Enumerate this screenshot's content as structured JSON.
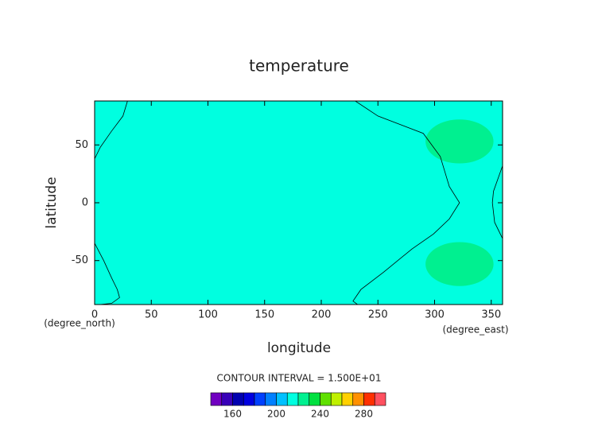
{
  "chart_data": {
    "type": "contour",
    "title": "temperature",
    "xlabel": "longitude",
    "ylabel": "latitude",
    "xunit": "(degree_east)",
    "yunit": "(degree_north)",
    "xlim": [
      0,
      360
    ],
    "ylim": [
      -88,
      88
    ],
    "xticks": [
      0,
      50,
      100,
      150,
      200,
      250,
      300,
      350
    ],
    "yticks": [
      -50,
      0,
      50
    ],
    "field_color": "#00ffe0",
    "regions": [
      {
        "color": "#00f090",
        "center": [
          322,
          53
        ],
        "radii": [
          30,
          19
        ]
      },
      {
        "color": "#00f090",
        "center": [
          322,
          -53
        ],
        "radii": [
          30,
          19
        ]
      }
    ],
    "contours": [
      {
        "lon": [
          29,
          25,
          15,
          5,
          0
        ],
        "lat": [
          88,
          75,
          62,
          48,
          38
        ]
      },
      {
        "lon": [
          0,
          8,
          15,
          20,
          22,
          15,
          5
        ],
        "lat": [
          -35,
          -50,
          -65,
          -75,
          -82,
          -87,
          -88
        ]
      },
      {
        "lon": [
          230,
          250,
          290,
          305,
          313,
          322,
          313,
          299,
          280,
          255,
          235,
          228,
          232
        ],
        "lat": [
          88,
          75,
          60,
          40,
          14,
          0,
          -14,
          -27,
          -40,
          -60,
          -75,
          -85,
          -88
        ]
      },
      {
        "lon": [
          360,
          352,
          351,
          353,
          360
        ],
        "lat": [
          32,
          10,
          0,
          -17,
          -31
        ]
      }
    ],
    "contour_interval_label": "CONTOUR INTERVAL = 1.500E+01",
    "colorbar": {
      "levels": [
        140,
        150,
        160,
        170,
        180,
        190,
        200,
        210,
        220,
        230,
        240,
        250,
        260,
        270,
        280,
        290,
        300
      ],
      "colors": [
        "#7000c0",
        "#3800b8",
        "#0000b0",
        "#0000e0",
        "#0040ff",
        "#0080ff",
        "#00c0ff",
        "#00ffe0",
        "#00f090",
        "#00e040",
        "#60e000",
        "#c0f000",
        "#ffd000",
        "#ff9000",
        "#ff3000",
        "#ff5060"
      ],
      "ticks": [
        160,
        200,
        240,
        280
      ]
    }
  }
}
